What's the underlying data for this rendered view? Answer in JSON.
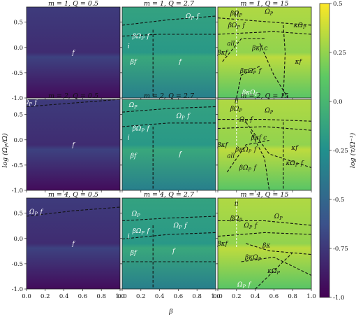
{
  "chart_data": {
    "type": "heatmap",
    "xlabel": "β",
    "ylabel": "log (Ω_P/Ω)",
    "colorbar_label": "log (τ/Ω⁻¹)",
    "xlim": [
      0.0,
      1.0
    ],
    "ylim": [
      -1.0,
      0.8
    ],
    "zlim": [
      -1.0,
      0.5
    ],
    "x_ticks": [
      "0.0",
      "0.2",
      "0.4",
      "0.6",
      "0.8",
      "1.0"
    ],
    "y_ticks": [
      "0.5",
      "0.0",
      "-0.5",
      "-1.0"
    ],
    "colorbar_ticks": [
      "0.5",
      "0.25",
      "0.0",
      "-0.25",
      "-0.5",
      "-0.75",
      "-1.0"
    ],
    "colormap": [
      "#440154",
      "#3b528b",
      "#21908d",
      "#5dc963",
      "#fde725"
    ],
    "panels": [
      {
        "title": "m = 1, Q = 0.5",
        "mean_value": -0.85,
        "labels": [
          "f"
        ]
      },
      {
        "title": "m = 1, Q = 2.7",
        "mean_value": -0.25,
        "labels": [
          "Ω_P f",
          "βΩ_P f",
          "βf",
          "f",
          "i"
        ]
      },
      {
        "title": "m = 1, Q = 15",
        "mean_value": 0.2,
        "labels": [
          "Ω_P",
          "βΩ_P",
          "κΩ_P",
          "βΩ_P f",
          "κf",
          "βκf",
          "all",
          "βκf c",
          "βκΩ_P",
          "βκΩ_P f",
          "ii"
        ]
      },
      {
        "title": "m = 2, Q = 0.5",
        "mean_value": -0.85,
        "labels": [
          "Ω_P f",
          "f"
        ]
      },
      {
        "title": "m = 2, Q = 2.7",
        "mean_value": -0.25,
        "labels": [
          "Ω_P",
          "Ω_P f",
          "βΩ_P f",
          "βf",
          "f",
          "i"
        ]
      },
      {
        "title": "m = 2, Q = 15",
        "mean_value": 0.2,
        "labels": [
          "Ω_P",
          "Ω_P f",
          "βΩ_P",
          "βκf",
          "βκf c",
          "βκΩ_P f",
          "κf",
          "κΩ_P f",
          "βΩ_P f",
          "all",
          "ii"
        ]
      },
      {
        "title": "m = 4, Q = 0.5",
        "mean_value": -0.85,
        "labels": [
          "Ω_P f",
          "f"
        ]
      },
      {
        "title": "m = 4, Q = 2.7",
        "mean_value": -0.25,
        "labels": [
          "Ω_P",
          "Ω_P f",
          "βΩ_P f",
          "βf",
          "f",
          "i"
        ]
      },
      {
        "title": "m = 4, Q = 15",
        "mean_value": 0.2,
        "labels": [
          "Ω_P",
          "Ω_P f",
          "βΩ_P",
          "βκf",
          "βκ",
          "βκΩ_P",
          "κΩ_P",
          "Ω_P f",
          "ii"
        ]
      }
    ]
  }
}
